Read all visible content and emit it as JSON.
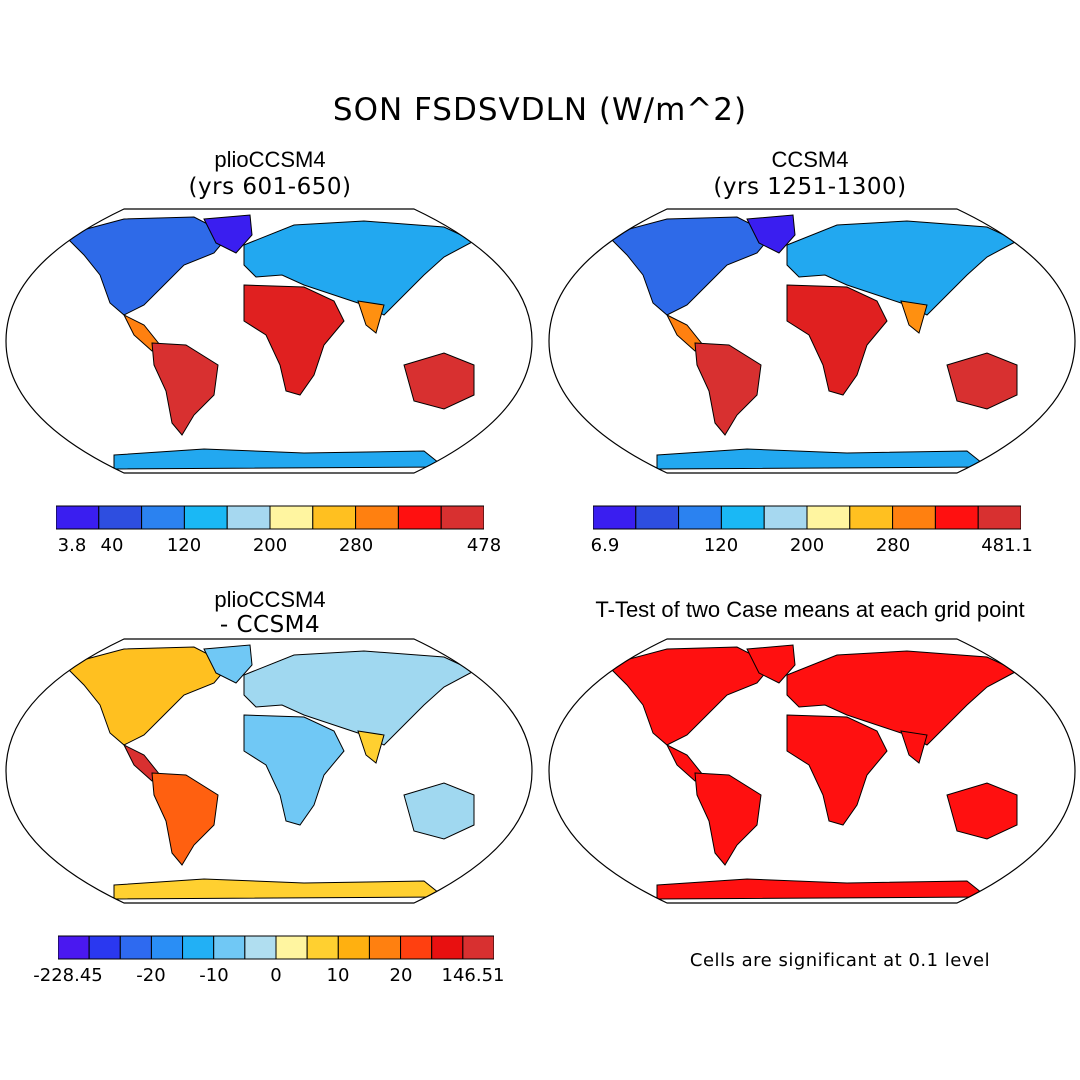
{
  "title": "SON FSDSVDLN (W/m^2)",
  "panels": [
    {
      "title": "plioCCSM4",
      "subtitle": "(yrs 601-650)"
    },
    {
      "title": "CCSM4",
      "subtitle": "(yrs 1251-1300)"
    },
    {
      "title": "plioCCSM4",
      "subtitle": "- CCSM4"
    },
    {
      "title": "T-Test of two Case means at each grid point",
      "subtitle": ""
    }
  ],
  "colorbars": [
    {
      "colors": [
        "#3a1ef0",
        "#2e4ee0",
        "#2b82f0",
        "#1ab8f5",
        "#a6d8f0",
        "#fff5a0",
        "#ffc020",
        "#ff8010",
        "#ff1010",
        "#d83030"
      ],
      "labels": [
        "3.8",
        "40",
        "120",
        "200",
        "280",
        "478"
      ]
    },
    {
      "colors": [
        "#3a1ef0",
        "#2e4ee0",
        "#2b82f0",
        "#1ab8f5",
        "#a6d8f0",
        "#fff5a0",
        "#ffc020",
        "#ff8010",
        "#ff1010",
        "#d83030"
      ],
      "labels": [
        "6.9",
        "120",
        "200",
        "280",
        "481.1"
      ]
    },
    {
      "colors": [
        "#4a18f0",
        "#2a38f0",
        "#2e6af0",
        "#2a8ef5",
        "#22b0f5",
        "#70c8f5",
        "#b0def0",
        "#fff5a0",
        "#ffd030",
        "#ffb010",
        "#ff8010",
        "#ff4010",
        "#e81010",
        "#d83030"
      ],
      "labels": [
        "-228.45",
        "-20",
        "-10",
        "0",
        "10",
        "20",
        "146.51"
      ]
    }
  ],
  "note": "Cells are significant at 0.1 level",
  "colors": {
    "land_high": "#d83030",
    "land_mid": "#ffc020",
    "polar": "#2e4ee0",
    "ttest": "#ff1010"
  }
}
